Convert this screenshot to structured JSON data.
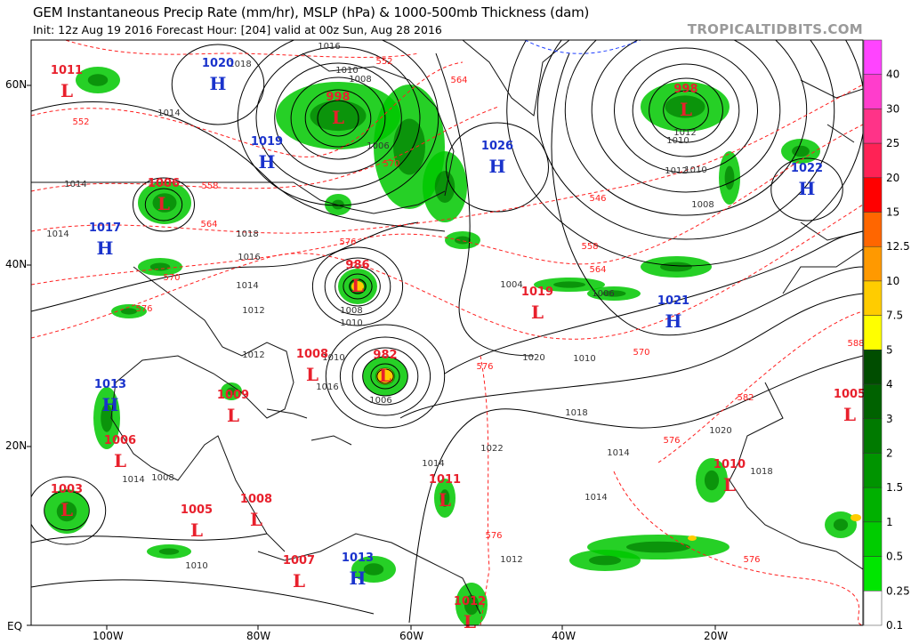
{
  "header": {
    "title": "GEM Instantaneous Precip Rate (mm/hr), MSLP (hPa) & 1000-500mb Thickness (dam)",
    "subtitle": "Init: 12z Aug 19 2016   Forecast Hour: [204]   valid at 00z Sun, Aug 28 2016",
    "brand": "TROPICALTIDBITS.COM"
  },
  "axes": {
    "latitudes": [
      "60N",
      "40N",
      "20N",
      "EQ"
    ],
    "longitudes": [
      "100W",
      "80W",
      "60W",
      "40W",
      "20W"
    ]
  },
  "colorbar": {
    "labels": [
      "40",
      "30",
      "25",
      "20",
      "15",
      "12.5",
      "10",
      "7.5",
      "5",
      "4",
      "3",
      "2",
      "1.5",
      "1",
      "0.5",
      "0.25",
      "0.1"
    ],
    "colors": [
      "#ff44ff",
      "#ff3dcc",
      "#ff3388",
      "#ff2255",
      "#ff0000",
      "#ff6600",
      "#ff9900",
      "#ffcc00",
      "#ffff00",
      "#004d00",
      "#006200",
      "#007a00",
      "#009400",
      "#00b000",
      "#00cc00",
      "#00e600",
      "#ffffff"
    ]
  },
  "colors": {
    "low": "#e8202c",
    "high": "#1a33cc",
    "isobar": "#000000",
    "thickness": "#ff2020",
    "precip": "#00c800"
  },
  "pressure_centers": [
    {
      "type": "L",
      "value": "1011"
    },
    {
      "type": "H",
      "value": "1020"
    },
    {
      "type": "L",
      "value": "998"
    },
    {
      "type": "H",
      "value": "1019"
    },
    {
      "type": "L",
      "value": "1006"
    },
    {
      "type": "H",
      "value": "1017"
    },
    {
      "type": "L",
      "value": "986"
    },
    {
      "type": "H",
      "value": "1026"
    },
    {
      "type": "L",
      "value": "998"
    },
    {
      "type": "H",
      "value": "1022"
    },
    {
      "type": "L",
      "value": "1019"
    },
    {
      "type": "H",
      "value": "1021"
    },
    {
      "type": "L",
      "value": "1008"
    },
    {
      "type": "L",
      "value": "982"
    },
    {
      "type": "H",
      "value": "1013"
    },
    {
      "type": "L",
      "value": "1009"
    },
    {
      "type": "L",
      "value": "1006"
    },
    {
      "type": "L",
      "value": "1003"
    },
    {
      "type": "L",
      "value": "1005"
    },
    {
      "type": "L",
      "value": "1008"
    },
    {
      "type": "L",
      "value": "1007"
    },
    {
      "type": "H",
      "value": "1013"
    },
    {
      "type": "L",
      "value": "1011"
    },
    {
      "type": "L",
      "value": "1012"
    },
    {
      "type": "L",
      "value": "1010"
    },
    {
      "type": "L",
      "value": "1005"
    }
  ],
  "isobar_labels": [
    "1016",
    "1018",
    "1014",
    "1010",
    "1008",
    "1006",
    "1014",
    "1014",
    "1016",
    "1018",
    "1014",
    "1012",
    "1008",
    "1010",
    "1012",
    "1010",
    "1008",
    "1010",
    "1012",
    "1014",
    "1006",
    "1010",
    "1004",
    "1006",
    "1010",
    "1014",
    "1022",
    "1018",
    "1020",
    "1018",
    "1016",
    "1014",
    "1012",
    "1010",
    "1012",
    "1008",
    "1020",
    "1014"
  ],
  "thickness_labels": [
    "552",
    "552",
    "558",
    "564",
    "570",
    "576",
    "576",
    "570",
    "564",
    "546",
    "558",
    "564",
    "570",
    "576",
    "576",
    "582",
    "576",
    "576",
    "588"
  ]
}
